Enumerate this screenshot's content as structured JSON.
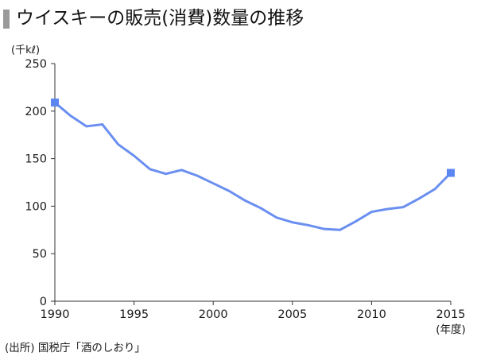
{
  "title": "ウイスキーの販売(消費)数量の推移",
  "source": "(出所) 国税庁「酒のしおり」",
  "colors": {
    "line": "#6a8ff0",
    "marker": "#5b86f2",
    "axis": "#333333",
    "title_bar": "#9a9a9a"
  },
  "chart_data": {
    "type": "line",
    "title": "ウイスキーの販売(消費)数量の推移",
    "ylabel": "(千kℓ)",
    "xlabel": "(年度)",
    "xlim": [
      1990,
      2015
    ],
    "ylim": [
      0,
      250
    ],
    "x_ticks": [
      "1990",
      "1995",
      "2000",
      "2005",
      "2010",
      "2015"
    ],
    "y_ticks": [
      "0",
      "50",
      "100",
      "150",
      "200",
      "250"
    ],
    "grid": false,
    "legend": "none",
    "series": [
      {
        "x": [
          1990,
          1991,
          1992,
          1993,
          1994,
          1995,
          1996,
          1997,
          1998,
          1999,
          2000,
          2001,
          2002,
          2003,
          2004,
          2005,
          2006,
          2007,
          2008,
          2009,
          2010,
          2011,
          2012,
          2013,
          2014,
          2015
        ],
        "values": [
          209,
          195,
          184,
          186,
          165,
          153,
          139,
          134,
          138,
          132,
          124,
          116,
          106,
          98,
          88,
          83,
          80,
          76,
          75,
          84,
          94,
          97,
          99,
          108,
          118,
          135
        ],
        "markers_at": [
          1990,
          2015
        ]
      }
    ]
  }
}
